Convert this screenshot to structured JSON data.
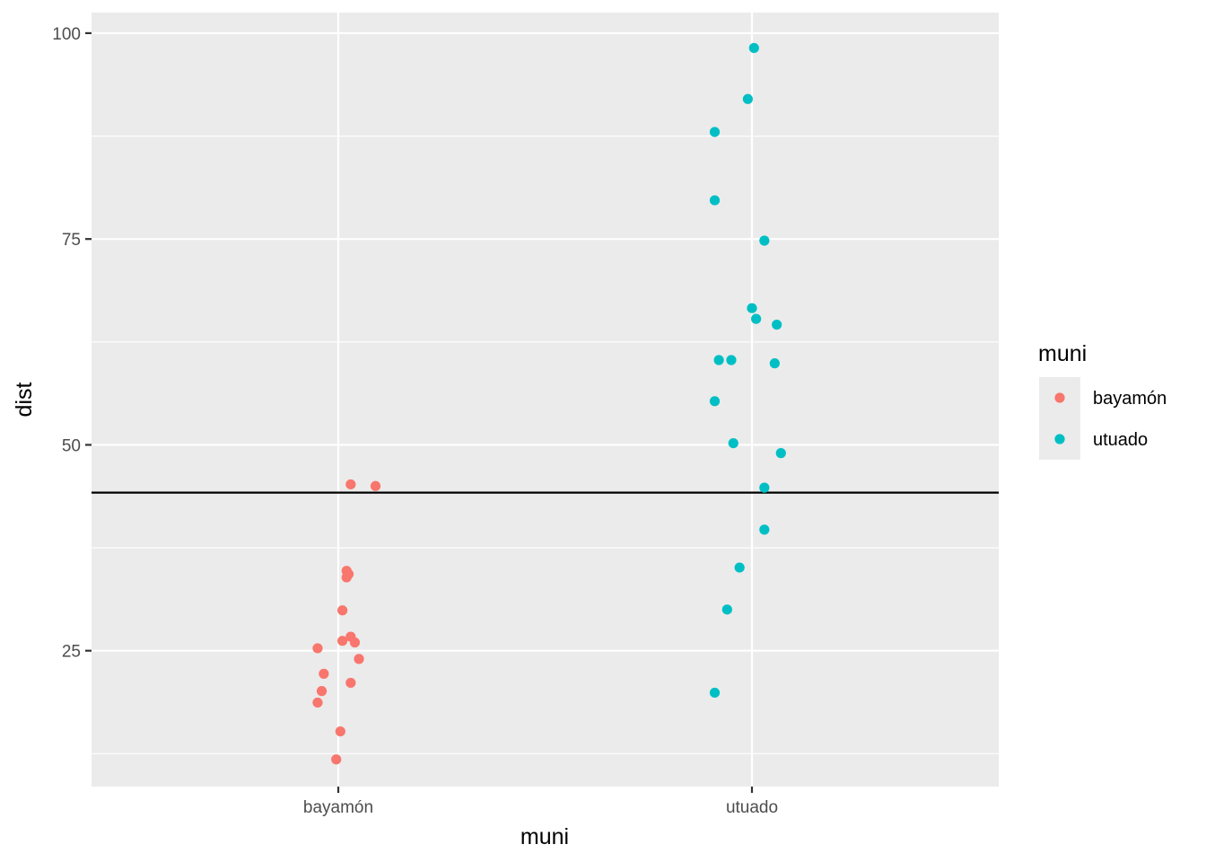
{
  "chart_data": {
    "type": "scatter",
    "title": "",
    "xlabel": "muni",
    "ylabel": "dist",
    "categories": [
      "bayamón",
      "utuado"
    ],
    "y_ticks": [
      25,
      50,
      75,
      100
    ],
    "ylim": [
      8.5,
      102.5
    ],
    "grid": true,
    "hline": 44.2,
    "legend": {
      "title": "muni",
      "position": "right",
      "entries": [
        "bayamón",
        "utuado"
      ]
    },
    "colors": {
      "bayamón": "#F8766D",
      "utuado": "#00BFC4",
      "panel": "#EBEBEB",
      "grid": "#FFFFFF",
      "hline": "#000000"
    },
    "series": [
      {
        "name": "bayamón",
        "points": [
          {
            "x": -0.1,
            "y": 25.3
          },
          {
            "x": -0.07,
            "y": 22.2
          },
          {
            "x": -0.08,
            "y": 20.1
          },
          {
            "x": -0.1,
            "y": 18.7
          },
          {
            "x": 0.06,
            "y": 21.1
          },
          {
            "x": 0.06,
            "y": 26.7
          },
          {
            "x": 0.08,
            "y": 26.0
          },
          {
            "x": 0.1,
            "y": 24.0
          },
          {
            "x": 0.02,
            "y": 26.2
          },
          {
            "x": 0.02,
            "y": 29.9
          },
          {
            "x": 0.04,
            "y": 34.7
          },
          {
            "x": 0.04,
            "y": 33.9
          },
          {
            "x": 0.05,
            "y": 34.3
          },
          {
            "x": 0.06,
            "y": 45.2
          },
          {
            "x": 0.18,
            "y": 45.0
          },
          {
            "x": 0.01,
            "y": 15.2
          },
          {
            "x": -0.01,
            "y": 11.8
          }
        ]
      },
      {
        "name": "utuado",
        "points": [
          {
            "x": 0.01,
            "y": 98.2
          },
          {
            "x": -0.02,
            "y": 92.0
          },
          {
            "x": -0.18,
            "y": 88.0
          },
          {
            "x": -0.18,
            "y": 79.7
          },
          {
            "x": 0.06,
            "y": 74.8
          },
          {
            "x": 0.0,
            "y": 66.6
          },
          {
            "x": 0.02,
            "y": 65.3
          },
          {
            "x": 0.12,
            "y": 64.6
          },
          {
            "x": -0.16,
            "y": 60.3
          },
          {
            "x": -0.1,
            "y": 60.3
          },
          {
            "x": 0.11,
            "y": 59.9
          },
          {
            "x": -0.18,
            "y": 55.3
          },
          {
            "x": -0.09,
            "y": 50.2
          },
          {
            "x": 0.14,
            "y": 49.0
          },
          {
            "x": 0.06,
            "y": 44.8
          },
          {
            "x": 0.06,
            "y": 39.7
          },
          {
            "x": -0.06,
            "y": 35.1
          },
          {
            "x": -0.12,
            "y": 30.0
          },
          {
            "x": -0.18,
            "y": 19.9
          }
        ]
      }
    ]
  }
}
